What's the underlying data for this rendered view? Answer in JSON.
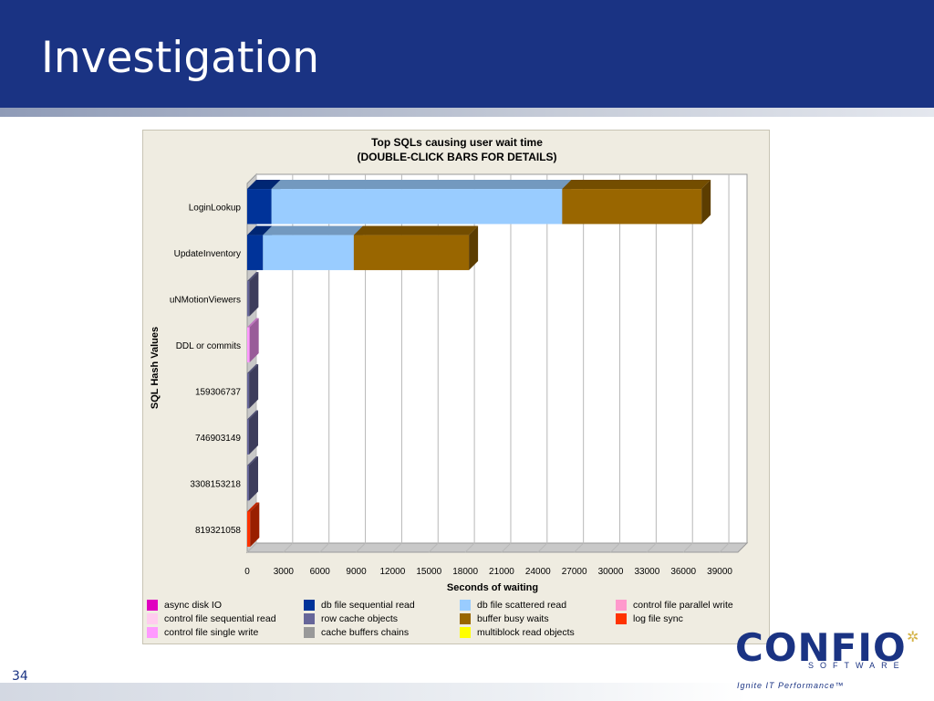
{
  "slide": {
    "title": "Investigation",
    "page_number": "34"
  },
  "logo": {
    "word": "CONFIO",
    "sub": "SOFTWARE",
    "tagline": "Ignite IT Performance™"
  },
  "chart_data": {
    "type": "bar",
    "orientation": "horizontal",
    "stacked": true,
    "title": "Top SQLs causing user wait time",
    "subtitle": "(DOUBLE-CLICK BARS FOR DETAILS)",
    "xlabel": "Seconds of waiting",
    "ylabel": "SQL Hash Values",
    "xlim": [
      0,
      40500
    ],
    "xticks": [
      0,
      3000,
      6000,
      9000,
      12000,
      15000,
      18000,
      21000,
      24000,
      27000,
      30000,
      33000,
      36000,
      39000
    ],
    "grid": true,
    "legend_position": "bottom",
    "categories": [
      "LoginLookup",
      "UpdateInventory",
      "uNMotionViewers",
      "DDL or commits",
      "159306737",
      "746903149",
      "3308153218",
      "819321058"
    ],
    "series": [
      {
        "name": "async disk IO",
        "color": "#e000c0",
        "values": [
          0,
          0,
          0,
          0,
          0,
          0,
          0,
          0
        ]
      },
      {
        "name": "db file sequential read",
        "color": "#003399",
        "values": [
          2000,
          1300,
          0,
          0,
          0,
          0,
          0,
          0
        ]
      },
      {
        "name": "db file scattered read",
        "color": "#99ccff",
        "values": [
          24000,
          7500,
          0,
          0,
          0,
          0,
          0,
          0
        ]
      },
      {
        "name": "control file parallel write",
        "color": "#ff99cc",
        "values": [
          0,
          0,
          0,
          0,
          0,
          0,
          0,
          0
        ]
      },
      {
        "name": "control file sequential read",
        "color": "#ffccee",
        "values": [
          0,
          0,
          0,
          0,
          0,
          0,
          0,
          0
        ]
      },
      {
        "name": "row cache objects",
        "color": "#666699",
        "values": [
          0,
          0,
          180,
          0,
          160,
          150,
          150,
          0
        ]
      },
      {
        "name": "buffer busy waits",
        "color": "#996600",
        "values": [
          11500,
          9500,
          0,
          0,
          0,
          0,
          0,
          0
        ]
      },
      {
        "name": "log file sync",
        "color": "#ff3300",
        "values": [
          0,
          0,
          0,
          0,
          0,
          0,
          0,
          250
        ]
      },
      {
        "name": "control file single write",
        "color": "#ff99ff",
        "values": [
          0,
          0,
          0,
          200,
          0,
          0,
          0,
          0
        ]
      },
      {
        "name": "cache buffers chains",
        "color": "#999999",
        "values": [
          0,
          0,
          0,
          0,
          0,
          0,
          0,
          0
        ]
      },
      {
        "name": "multiblock read objects",
        "color": "#ffff00",
        "values": [
          0,
          0,
          0,
          0,
          0,
          0,
          0,
          0
        ]
      }
    ]
  }
}
